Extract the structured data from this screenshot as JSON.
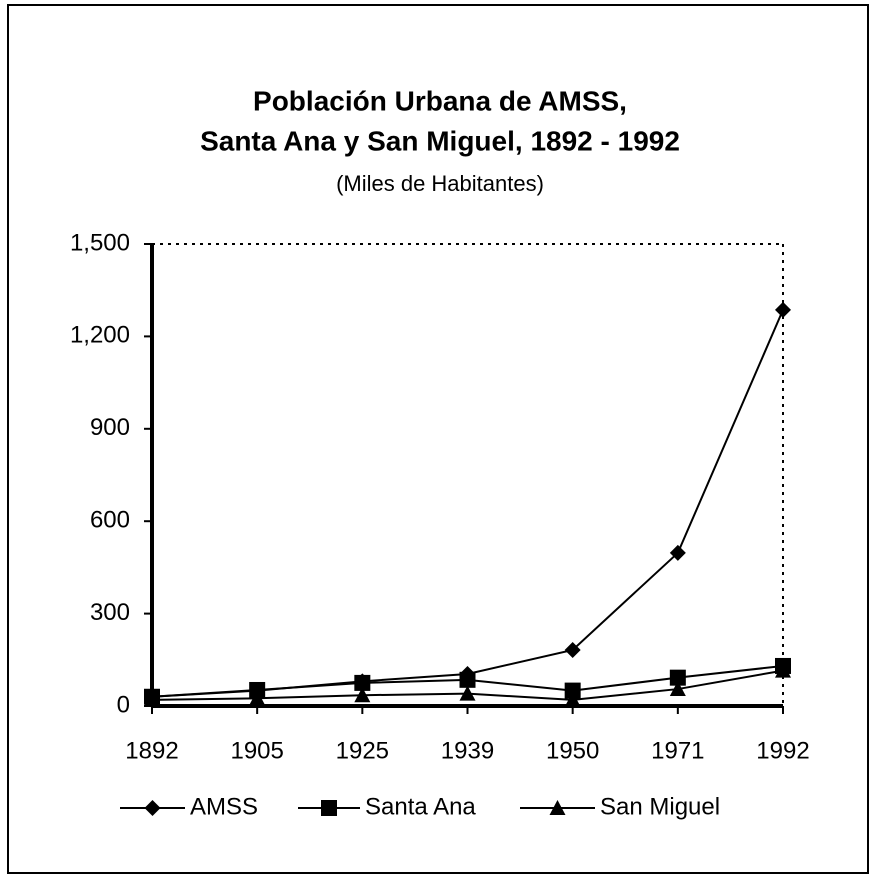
{
  "chart_data": {
    "type": "line",
    "title": [
      "Población Urbana de AMSS,",
      "Santa Ana y San Miguel, 1892 - 1992"
    ],
    "subtitle": "(Miles de Habitantes)",
    "categories": [
      "1892",
      "1905",
      "1925",
      "1939",
      "1950",
      "1971",
      "1992"
    ],
    "series": [
      {
        "name": "AMSS",
        "color": "#000000",
        "marker": "diamond",
        "values": [
          30,
          50,
          80,
          104,
          182,
          497,
          1286
        ]
      },
      {
        "name": "Santa Ana",
        "color": "#000000",
        "marker": "square",
        "values": [
          30,
          52,
          75,
          85,
          50,
          92,
          130
        ]
      },
      {
        "name": "San Miguel",
        "color": "#000000",
        "marker": "triangle",
        "values": [
          20,
          25,
          35,
          40,
          20,
          55,
          115
        ]
      }
    ],
    "ylim": [
      0,
      1500
    ],
    "yticks": [
      0,
      300,
      600,
      900,
      {
        "value": 1200,
        "label": "1,200"
      },
      {
        "value": 1500,
        "label": "1,500"
      }
    ],
    "grid": false,
    "legend": "bottom"
  }
}
